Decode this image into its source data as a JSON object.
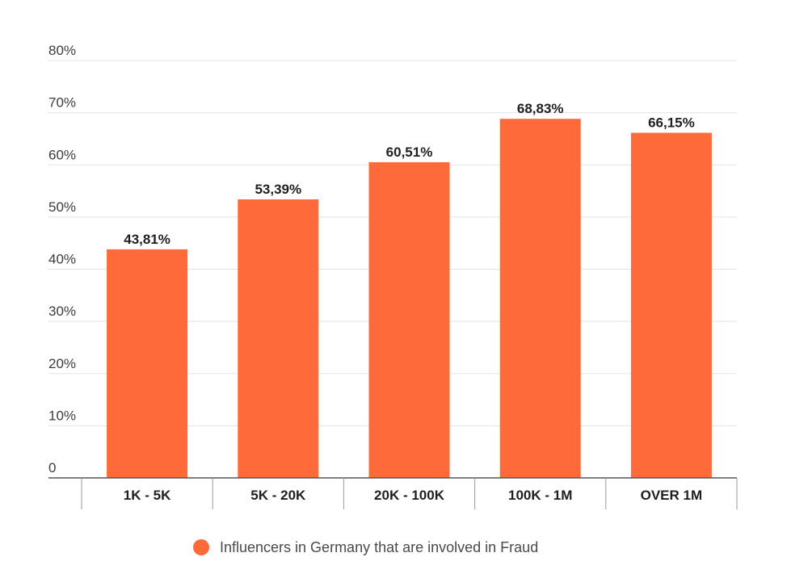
{
  "chart_data": {
    "type": "bar",
    "categories": [
      "1K - 5K",
      "5K - 20K",
      "20K - 100K",
      "100K - 1M",
      "OVER 1M"
    ],
    "series": [
      {
        "name": "Influencers in Germany that are involved in Fraud",
        "values": [
          43.81,
          53.39,
          60.51,
          68.83,
          66.15
        ],
        "data_labels": [
          "43,81%",
          "53,39%",
          "60,51%",
          "68,83%",
          "66,15%"
        ],
        "color": "#ff6a3a"
      }
    ],
    "ylim": [
      0,
      80
    ],
    "y_ticks": [
      {
        "value": 0,
        "label": "0"
      },
      {
        "value": 10,
        "label": "10%"
      },
      {
        "value": 20,
        "label": "20%"
      },
      {
        "value": 30,
        "label": "30%"
      },
      {
        "value": 40,
        "label": "40%"
      },
      {
        "value": 50,
        "label": "50%"
      },
      {
        "value": 60,
        "label": "60%"
      },
      {
        "value": 70,
        "label": "70%"
      },
      {
        "value": 80,
        "label": "80%"
      }
    ],
    "grid": true,
    "legend": "bottom-center",
    "gridline_color": "#e3e3e3",
    "axis_color": "#555555"
  }
}
